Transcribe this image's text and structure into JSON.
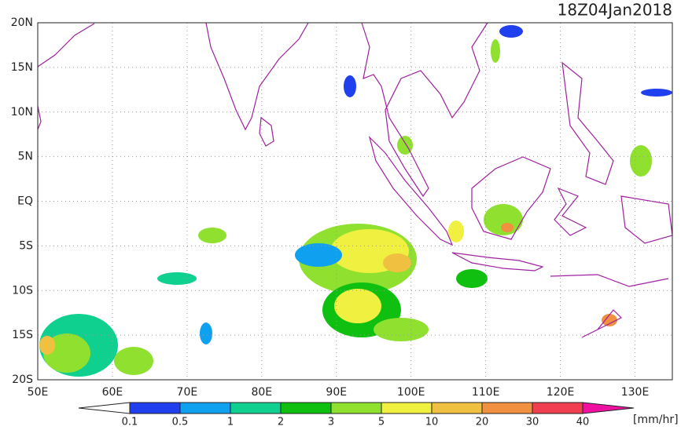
{
  "map": {
    "title": "18Z04Jan2018",
    "lat_labels": [
      "20N",
      "15N",
      "10N",
      "5N",
      "EQ",
      "5S",
      "10S",
      "15S",
      "20S"
    ],
    "lon_labels": [
      "50E",
      "60E",
      "70E",
      "80E",
      "90E",
      "100E",
      "110E",
      "120E",
      "130E"
    ]
  },
  "colorbar": {
    "levels": [
      0.1,
      0.5,
      1,
      2,
      3,
      5,
      10,
      20,
      30,
      40
    ],
    "colors": [
      "#ffffff",
      "#2040f0",
      "#10a0f0",
      "#10d090",
      "#10c010",
      "#90e030",
      "#f0f040",
      "#f0c040",
      "#f09040",
      "#f04050",
      "#f010a0"
    ],
    "unit": "[mm/hr]"
  }
}
